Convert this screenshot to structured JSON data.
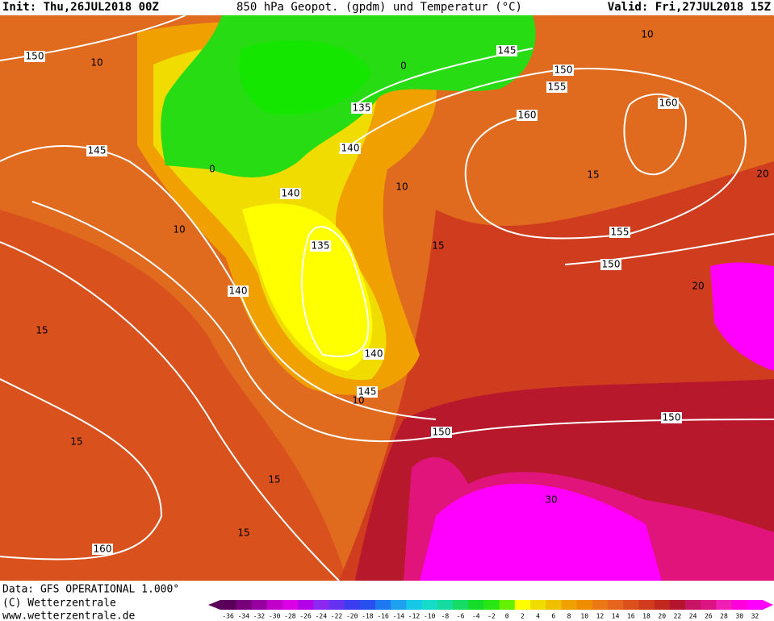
{
  "header": {
    "init": "Init: Thu,26JUL2018 00Z",
    "title": "850 hPa Geopot. (gpdm) und Temperatur (°C)",
    "valid": "Valid: Fri,27JUL2018 15Z"
  },
  "map": {
    "contour_labels": [
      "150",
      "10",
      "145",
      "150",
      "10",
      "155",
      "0",
      "160",
      "160",
      "135",
      "145",
      "140",
      "0",
      "10",
      "15",
      "20",
      "140",
      "10",
      "135",
      "155",
      "150",
      "15",
      "20",
      "140",
      "15",
      "140",
      "145",
      "10",
      "150",
      "150",
      "15",
      "15",
      "30",
      "15",
      "160"
    ]
  },
  "footer": {
    "data": "Data: GFS OPERATIONAL 1.000°",
    "copyright": "(C) Wetterzentrale",
    "url": "www.wetterzentrale.de"
  },
  "legend": {
    "ticks": [
      -36,
      -34,
      -32,
      -30,
      -28,
      -26,
      -24,
      -22,
      -20,
      -18,
      -16,
      -14,
      -12,
      -10,
      -8,
      -6,
      -4,
      -2,
      0,
      2,
      4,
      6,
      8,
      10,
      12,
      14,
      16,
      18,
      20,
      22,
      24,
      26,
      28,
      30,
      32
    ],
    "colors": [
      "#5a005a",
      "#78007a",
      "#9600a0",
      "#c000c8",
      "#dc00e6",
      "#b400e6",
      "#8c28f0",
      "#6432f0",
      "#3c3cf0",
      "#2850f0",
      "#1e78f0",
      "#1ea0f0",
      "#14c8e6",
      "#14dcc8",
      "#14dca0",
      "#14dc64",
      "#14dc28",
      "#28e614",
      "#64f000",
      "#ffff00",
      "#f0dc00",
      "#f0c000",
      "#f0a000",
      "#f08c00",
      "#eb7814",
      "#e6641e",
      "#dc501e",
      "#d23c1e",
      "#c3281e",
      "#b4142d",
      "#c81464",
      "#dc1482",
      "#f01eb4",
      "#ff00dc",
      "#ff00ff"
    ]
  }
}
